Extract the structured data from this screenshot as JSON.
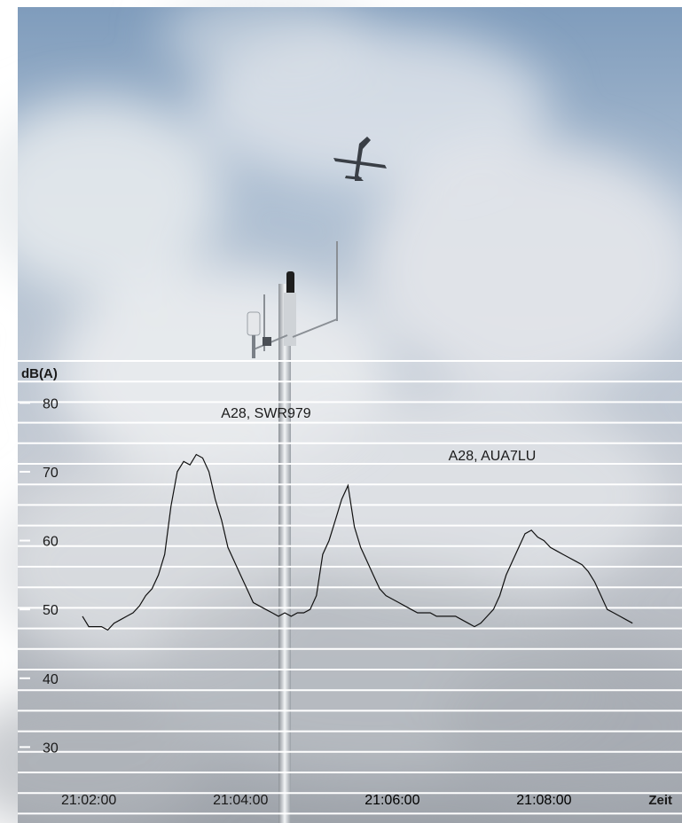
{
  "chart_data": {
    "type": "line",
    "ylabel": "dB(A)",
    "xlabel": "Zeit",
    "ylim": [
      20,
      87
    ],
    "yticks": [
      30,
      40,
      50,
      60,
      70,
      80
    ],
    "xlim_seconds": [
      115,
      587
    ],
    "xticks": [
      "21:02:00",
      "21:04:00",
      "21:06:00",
      "21:08:00"
    ],
    "annotations": [
      {
        "text": "A28, SWR979",
        "time": "21:04:00",
        "y": 72.5
      },
      {
        "text": "A28, AUA7LU",
        "time": "21:07:00",
        "y": 68
      }
    ],
    "series": [
      {
        "x": [
          "21:01:55",
          "21:02:00",
          "21:02:05",
          "21:02:10",
          "21:02:15",
          "21:02:20",
          "21:02:25",
          "21:02:30",
          "21:02:35",
          "21:02:40",
          "21:02:45",
          "21:02:50",
          "21:02:55",
          "21:03:00",
          "21:03:05",
          "21:03:10",
          "21:03:15",
          "21:03:20",
          "21:03:25",
          "21:03:30",
          "21:03:35",
          "21:03:40",
          "21:03:45",
          "21:03:50",
          "21:03:55",
          "21:04:00",
          "21:04:05",
          "21:04:10",
          "21:04:15",
          "21:04:20",
          "21:04:25",
          "21:04:30",
          "21:04:35",
          "21:04:40",
          "21:04:45",
          "21:04:50",
          "21:04:55",
          "21:05:00",
          "21:05:05",
          "21:05:10",
          "21:05:15",
          "21:05:20",
          "21:05:25",
          "21:05:30",
          "21:05:35",
          "21:05:40",
          "21:05:45",
          "21:05:50",
          "21:05:55",
          "21:06:00",
          "21:06:05",
          "21:06:10",
          "21:06:15",
          "21:06:20",
          "21:06:25",
          "21:06:30",
          "21:06:35",
          "21:06:40",
          "21:06:45",
          "21:06:50",
          "21:06:55",
          "21:07:00",
          "21:07:05",
          "21:07:10",
          "21:07:15",
          "21:07:20",
          "21:07:25",
          "21:07:30",
          "21:07:35",
          "21:07:40",
          "21:07:45",
          "21:07:50",
          "21:07:55",
          "21:08:00",
          "21:08:05",
          "21:08:10",
          "21:08:15",
          "21:08:20",
          "21:08:25",
          "21:08:30",
          "21:08:35",
          "21:08:40",
          "21:08:45",
          "21:08:50",
          "21:08:55",
          "21:09:00",
          "21:09:05",
          "21:09:10"
        ],
        "values": [
          49,
          47.5,
          47.5,
          47.5,
          47,
          48,
          48.5,
          49,
          49.5,
          50.5,
          52,
          53,
          55,
          58,
          65,
          70,
          71.5,
          71,
          72.5,
          72,
          70,
          66,
          63,
          59,
          57,
          55,
          53,
          51,
          50.5,
          50,
          49.5,
          49,
          49.5,
          49,
          49.5,
          49.5,
          50,
          52,
          58,
          60,
          63,
          66,
          68,
          62,
          59,
          57,
          55,
          53,
          52,
          51.5,
          51,
          50.5,
          50,
          49.5,
          49.5,
          49.5,
          49,
          49,
          49,
          49,
          48.5,
          48,
          47.5,
          48,
          49,
          50,
          52,
          55,
          57,
          59,
          61,
          61.5,
          60.5,
          60,
          59,
          58.5,
          58,
          57.5,
          57,
          56.5,
          55.5,
          54,
          52,
          50,
          49.5,
          49,
          48.5,
          48
        ]
      }
    ]
  }
}
